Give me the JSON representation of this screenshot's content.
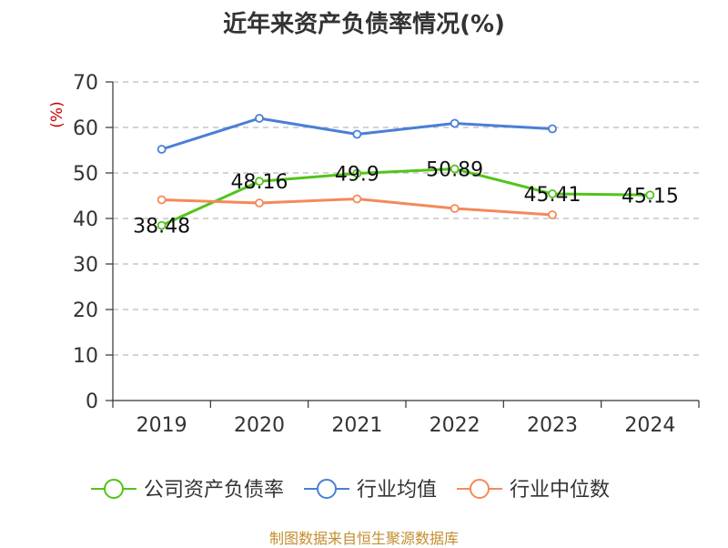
{
  "chart_data": {
    "type": "line",
    "title": "近年来资产负债率情况(%)",
    "ylabel": "(%)",
    "ylim": [
      0,
      70
    ],
    "yticks": [
      0,
      10,
      20,
      30,
      40,
      50,
      60,
      70
    ],
    "grid": true,
    "legend_position": "bottom",
    "categories": [
      "2019",
      "2020",
      "2021",
      "2022",
      "2023",
      "2024"
    ],
    "series": [
      {
        "name": "公司资产负债率",
        "color": "#52c41a",
        "values": [
          38.48,
          48.16,
          49.9,
          50.89,
          45.41,
          45.15
        ],
        "labels": [
          "38.48",
          "48.16",
          "49.9",
          "50.89",
          "45.41",
          "45.15"
        ]
      },
      {
        "name": "行业均值",
        "color": "#4a7fd6",
        "values": [
          55.2,
          62.0,
          58.5,
          60.9,
          59.7,
          null
        ]
      },
      {
        "name": "行业中位数",
        "color": "#f5895a",
        "values": [
          44.1,
          43.4,
          44.3,
          42.2,
          40.8,
          null
        ]
      }
    ]
  },
  "footer": "制图数据来自恒生聚源数据库",
  "unit_color": "#cc0000"
}
